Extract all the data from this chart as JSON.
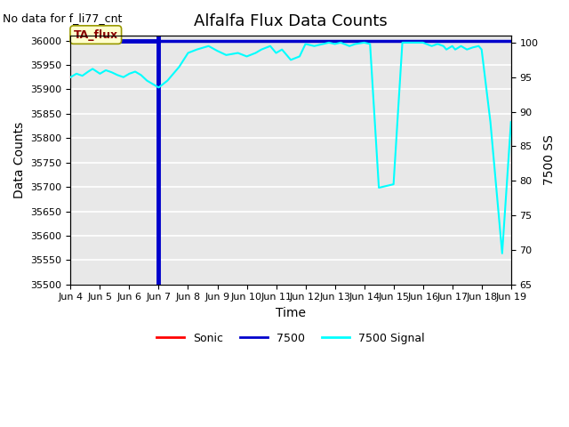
{
  "title": "Alfalfa Flux Data Counts",
  "subtitle": "No data for f_li77_cnt",
  "xlabel": "Time",
  "ylabel_left": "Data Counts",
  "ylabel_right": "7500 SS",
  "annotation": "TA_flux",
  "xlim": [
    4,
    19
  ],
  "ylim_left": [
    35500,
    36010
  ],
  "ylim_right": [
    65,
    101
  ],
  "xtick_labels": [
    "Jun 4",
    "Jun 5",
    "Jun 6",
    "Jun 7",
    "Jun 8",
    "Jun 9",
    "Jun 10",
    "Jun 11",
    "Jun 12",
    "Jun 13",
    "Jun 14",
    "Jun 15",
    "Jun 16",
    "Jun 17",
    "Jun 18",
    "Jun 19"
  ],
  "xtick_positions": [
    4,
    5,
    6,
    7,
    8,
    9,
    10,
    11,
    12,
    13,
    14,
    15,
    16,
    17,
    18,
    19
  ],
  "ytick_left": [
    35500,
    35550,
    35600,
    35650,
    35700,
    35750,
    35800,
    35850,
    35900,
    35950,
    36000
  ],
  "ytick_right": [
    65,
    70,
    75,
    80,
    85,
    90,
    95,
    100
  ],
  "bg_color": "#e8e8e8",
  "grid_color": "#ffffff",
  "signal_x": [
    4.0,
    4.2,
    4.4,
    4.6,
    4.75,
    5.0,
    5.2,
    5.4,
    5.6,
    5.8,
    6.0,
    6.2,
    6.4,
    6.6,
    6.8,
    7.0,
    7.3,
    7.7,
    8.0,
    8.3,
    8.7,
    9.0,
    9.3,
    9.7,
    10.0,
    10.3,
    10.5,
    10.8,
    11.0,
    11.2,
    11.5,
    11.8,
    12.0,
    12.3,
    12.6,
    12.8,
    13.0,
    13.2,
    13.5,
    13.7,
    14.0,
    14.2,
    14.5,
    15.0,
    15.3,
    15.7,
    16.0,
    16.3,
    16.5,
    16.7,
    16.8,
    17.0,
    17.1,
    17.3,
    17.5,
    17.7,
    17.9,
    18.0,
    18.3,
    18.7,
    19.0
  ],
  "signal_y": [
    95,
    95.5,
    95.2,
    95.8,
    96.2,
    95.5,
    96.0,
    95.7,
    95.3,
    95.0,
    95.5,
    95.8,
    95.3,
    94.5,
    94.0,
    93.5,
    94.5,
    96.5,
    98.5,
    99.0,
    99.5,
    98.8,
    98.2,
    98.5,
    98.0,
    98.5,
    99.0,
    99.5,
    98.5,
    99.0,
    97.5,
    98.0,
    99.8,
    99.5,
    99.8,
    100.0,
    99.8,
    100.0,
    99.5,
    99.8,
    100.0,
    99.8,
    79.0,
    79.5,
    100.0,
    100.0,
    100.0,
    99.5,
    99.8,
    99.5,
    99.0,
    99.5,
    99.0,
    99.5,
    99.0,
    99.3,
    99.5,
    99.0,
    88.5,
    69.5,
    88.5
  ],
  "sonic_color": "#ff0000",
  "line_7500_color": "#0000cc",
  "signal_color": "#00ffff",
  "line_7500_linewidth": 3.5,
  "signal_linewidth": 1.5,
  "title_fontsize": 13,
  "subtitle_fontsize": 9,
  "axis_label_fontsize": 10,
  "tick_fontsize": 8,
  "legend_fontsize": 9
}
